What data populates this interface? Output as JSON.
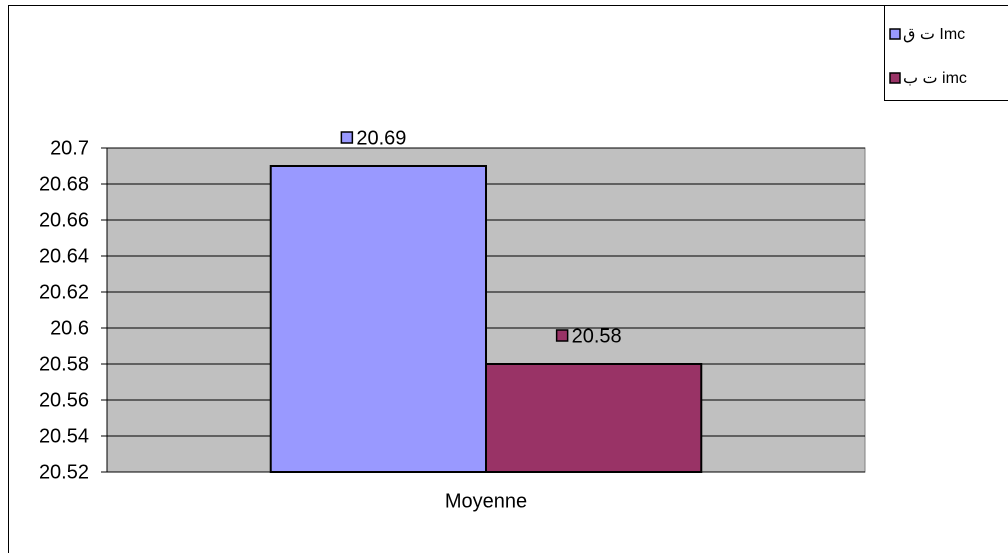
{
  "chart_data": {
    "type": "bar",
    "categories": [
      "Moyenne"
    ],
    "series": [
      {
        "name": "ق ت Imc",
        "color": "#9999ff",
        "values": [
          20.69
        ]
      },
      {
        "name": "ب ت imc",
        "color": "#993366",
        "values": [
          20.58
        ]
      }
    ],
    "ylim": [
      20.52,
      20.7
    ],
    "yticks": [
      20.52,
      20.54,
      20.56,
      20.58,
      20.6,
      20.62,
      20.64,
      20.66,
      20.68,
      20.7
    ],
    "grid": true,
    "legend": "top-right",
    "plot_background": "#c0c0c0"
  }
}
